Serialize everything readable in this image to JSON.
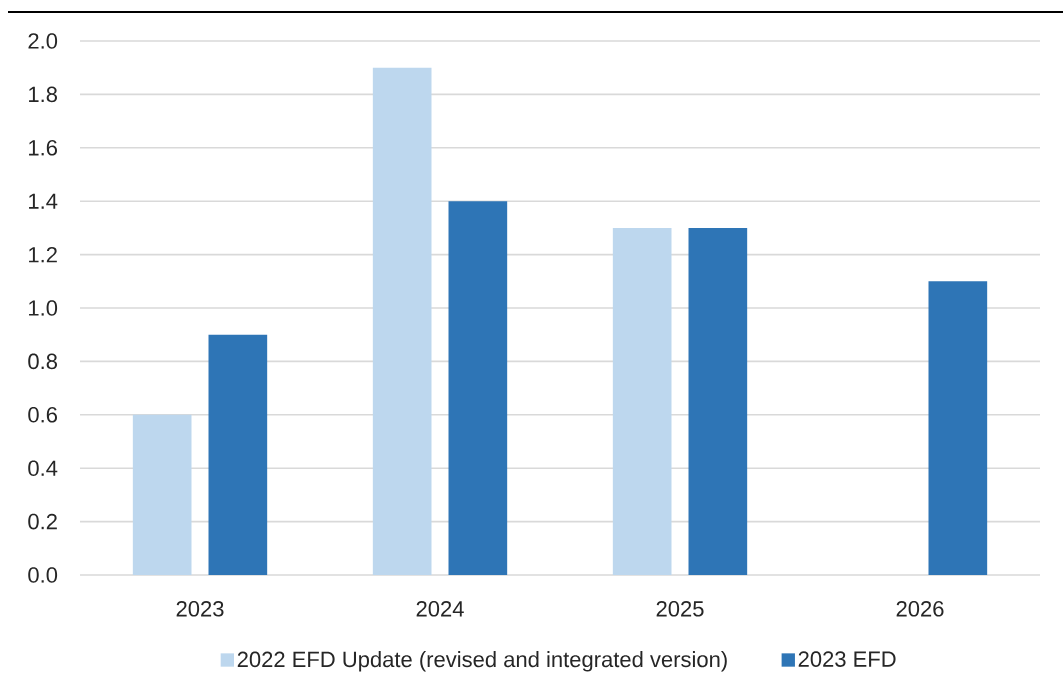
{
  "chart_data": {
    "type": "bar",
    "categories": [
      "2023",
      "2024",
      "2025",
      "2026"
    ],
    "series": [
      {
        "name": "2022 EFD Update (revised and integrated version)",
        "color": "#bdd7ee",
        "values": [
          0.6,
          1.9,
          1.3,
          null
        ]
      },
      {
        "name": "2023 EFD",
        "color": "#2e75b6",
        "values": [
          0.9,
          1.4,
          1.3,
          1.1
        ]
      }
    ],
    "ylim": [
      0,
      2.0
    ],
    "yticks": [
      {
        "value": 0,
        "label": "0.0"
      },
      {
        "value": 0.2,
        "label": "0.2"
      },
      {
        "value": 0.4,
        "label": "0.4"
      },
      {
        "value": 0.6,
        "label": "0.6"
      },
      {
        "value": 0.8,
        "label": "0.8"
      },
      {
        "value": 1.0,
        "label": "1.0"
      },
      {
        "value": 1.2,
        "label": "1.2"
      },
      {
        "value": 1.4,
        "label": "1.4"
      },
      {
        "value": 1.6,
        "label": "1.6"
      },
      {
        "value": 1.8,
        "label": "1.8"
      },
      {
        "value": 2.0,
        "label": "2.0"
      }
    ],
    "grid": "y",
    "legend": "bottom"
  }
}
